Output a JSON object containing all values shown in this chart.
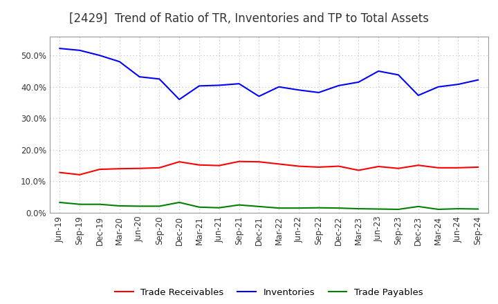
{
  "title": "[2429]  Trend of Ratio of TR, Inventories and TP to Total Assets",
  "x_labels": [
    "Jun-19",
    "Sep-19",
    "Dec-19",
    "Mar-20",
    "Jun-20",
    "Sep-20",
    "Dec-20",
    "Mar-21",
    "Jun-21",
    "Sep-21",
    "Dec-21",
    "Mar-22",
    "Jun-22",
    "Sep-22",
    "Dec-22",
    "Mar-23",
    "Jun-23",
    "Sep-23",
    "Dec-23",
    "Mar-24",
    "Jun-24",
    "Sep-24"
  ],
  "trade_receivables": [
    0.128,
    0.121,
    0.138,
    0.14,
    0.141,
    0.143,
    0.162,
    0.152,
    0.15,
    0.163,
    0.162,
    0.155,
    0.148,
    0.145,
    0.148,
    0.135,
    0.147,
    0.141,
    0.151,
    0.143,
    0.143,
    0.145
  ],
  "inventories": [
    0.522,
    0.516,
    0.5,
    0.48,
    0.432,
    0.425,
    0.36,
    0.403,
    0.405,
    0.41,
    0.37,
    0.4,
    0.39,
    0.382,
    0.404,
    0.415,
    0.45,
    0.438,
    0.373,
    0.4,
    0.408,
    0.422
  ],
  "trade_payables": [
    0.033,
    0.027,
    0.027,
    0.022,
    0.021,
    0.021,
    0.033,
    0.018,
    0.016,
    0.025,
    0.02,
    0.015,
    0.015,
    0.016,
    0.015,
    0.013,
    0.012,
    0.011,
    0.02,
    0.011,
    0.013,
    0.012
  ],
  "line_color_tr": "#FF0000",
  "line_color_inv": "#0000FF",
  "line_color_tp": "#008000",
  "background_color": "#FFFFFF",
  "grid_color": "#BBBBBB",
  "ylim": [
    0.0,
    0.56
  ],
  "yticks": [
    0.0,
    0.1,
    0.2,
    0.3,
    0.4,
    0.5
  ],
  "legend_labels": [
    "Trade Receivables",
    "Inventories",
    "Trade Payables"
  ],
  "title_fontsize": 12,
  "axis_fontsize": 8.5,
  "legend_fontsize": 9.5
}
